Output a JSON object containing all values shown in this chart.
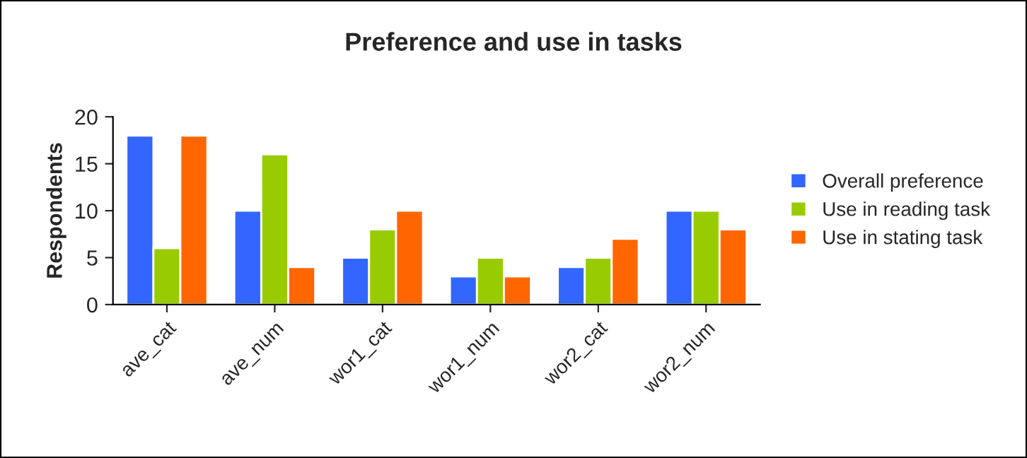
{
  "chart_data": {
    "type": "bar",
    "title": "Preference and use in tasks",
    "ylabel": "Respondents",
    "categories": [
      "ave_cat",
      "ave_num",
      "wor1_cat",
      "wor1_num",
      "wor2_cat",
      "wor2_num"
    ],
    "series": [
      {
        "name": "Overall preference",
        "color": "#3366ff",
        "values": [
          18,
          10,
          5,
          3,
          4,
          10
        ]
      },
      {
        "name": "Use in reading task",
        "color": "#99cc00",
        "values": [
          6,
          16,
          8,
          5,
          5,
          10
        ]
      },
      {
        "name": "Use in stating task",
        "color": "#ff6600",
        "values": [
          18,
          4,
          10,
          3,
          7,
          8
        ]
      }
    ],
    "ylim": [
      0,
      20
    ],
    "yticks": [
      0,
      5,
      10,
      15,
      20
    ],
    "grid": false,
    "legend": "right"
  }
}
